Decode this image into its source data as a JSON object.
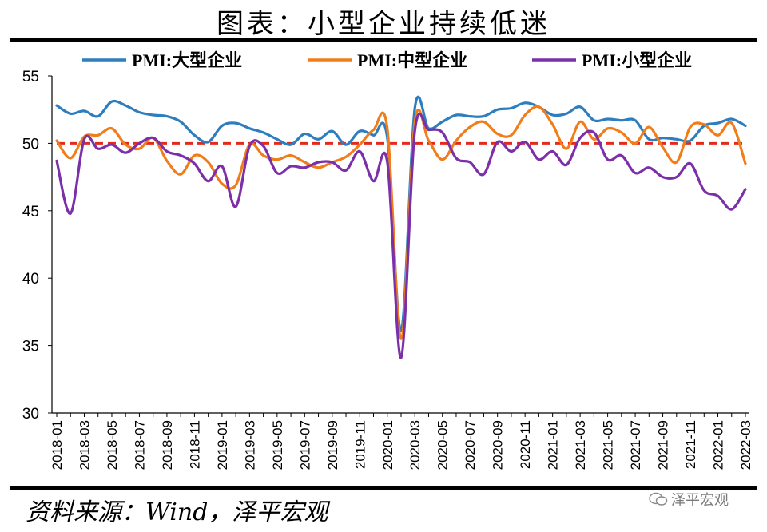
{
  "header": {
    "title": "图表：小型企业持续低迷"
  },
  "footer": {
    "source": "资料来源：Wind，泽平宏观",
    "watermark": "泽平宏观"
  },
  "chart_data": {
    "type": "line",
    "title": "图表：小型企业持续低迷",
    "xlabel": "",
    "ylabel": "",
    "ylim": [
      30,
      55
    ],
    "yticks": [
      30,
      35,
      40,
      45,
      50,
      55
    ],
    "legend_position": "top",
    "grid": false,
    "categories": [
      "2018-01",
      "2018-02",
      "2018-03",
      "2018-04",
      "2018-05",
      "2018-06",
      "2018-07",
      "2018-08",
      "2018-09",
      "2018-10",
      "2018-11",
      "2018-12",
      "2019-01",
      "2019-02",
      "2019-03",
      "2019-04",
      "2019-05",
      "2019-06",
      "2019-07",
      "2019-08",
      "2019-09",
      "2019-10",
      "2019-11",
      "2019-12",
      "2020-01",
      "2020-02",
      "2020-03",
      "2020-04",
      "2020-05",
      "2020-06",
      "2020-07",
      "2020-08",
      "2020-09",
      "2020-10",
      "2020-11",
      "2020-12",
      "2021-01",
      "2021-02",
      "2021-03",
      "2021-04",
      "2021-05",
      "2021-06",
      "2021-07",
      "2021-08",
      "2021-09",
      "2021-10",
      "2021-11",
      "2021-12",
      "2022-01",
      "2022-02",
      "2022-03"
    ],
    "xtick_labels": [
      "2018-01",
      "2018-03",
      "2018-05",
      "2018-07",
      "2018-09",
      "2018-11",
      "2019-01",
      "2019-03",
      "2019-05",
      "2019-07",
      "2019-09",
      "2019-11",
      "2020-01",
      "2020-03",
      "2020-05",
      "2020-07",
      "2020-09",
      "2020-11",
      "2021-01",
      "2021-03",
      "2021-05",
      "2021-07",
      "2021-09",
      "2021-11",
      "2022-01",
      "2022-03"
    ],
    "series": [
      {
        "name": "PMI:大型企业",
        "color": "#2e7dbf",
        "values": [
          52.8,
          52.2,
          52.4,
          52.0,
          53.1,
          52.8,
          52.3,
          52.1,
          52.0,
          51.6,
          50.6,
          50.1,
          51.3,
          51.5,
          51.1,
          50.8,
          50.3,
          49.9,
          50.7,
          50.3,
          50.9,
          49.9,
          50.9,
          50.6,
          50.4,
          36.1,
          52.6,
          51.1,
          51.6,
          52.1,
          52.0,
          52.0,
          52.5,
          52.6,
          53.0,
          52.7,
          52.1,
          52.2,
          52.7,
          51.7,
          51.8,
          51.7,
          51.7,
          50.3,
          50.4,
          50.3,
          50.2,
          51.3,
          51.5,
          51.8,
          51.3
        ]
      },
      {
        "name": "PMI:中型企业",
        "color": "#f07d1a",
        "values": [
          50.2,
          48.9,
          50.5,
          50.6,
          51.1,
          49.9,
          49.6,
          50.4,
          48.7,
          47.7,
          49.1,
          48.6,
          47.0,
          46.9,
          49.9,
          49.1,
          48.8,
          49.1,
          48.6,
          48.2,
          48.6,
          49.0,
          49.9,
          51.0,
          51.1,
          35.5,
          51.6,
          50.2,
          48.8,
          50.2,
          51.2,
          51.6,
          50.7,
          50.6,
          52.1,
          52.7,
          51.4,
          49.6,
          51.6,
          50.3,
          51.1,
          50.8,
          50.0,
          51.2,
          49.7,
          48.6,
          51.2,
          51.4,
          50.6,
          51.5,
          48.5
        ]
      },
      {
        "name": "PMI:小型企业",
        "color": "#7b2fa8",
        "values": [
          48.7,
          44.8,
          50.3,
          49.6,
          49.9,
          49.3,
          50.0,
          50.4,
          49.4,
          49.1,
          48.5,
          47.2,
          48.3,
          45.3,
          49.8,
          49.8,
          47.8,
          48.3,
          48.2,
          48.6,
          48.6,
          48.0,
          49.4,
          47.2,
          48.6,
          34.1,
          50.9,
          51.0,
          50.8,
          48.9,
          48.6,
          47.7,
          50.1,
          49.4,
          50.1,
          48.8,
          49.4,
          48.4,
          50.4,
          50.8,
          48.8,
          49.1,
          47.8,
          48.2,
          47.5,
          47.5,
          48.5,
          46.5,
          46.1,
          45.1,
          46.6
        ]
      }
    ],
    "reference_lines": [
      {
        "y": 50,
        "color": "#e32b1c",
        "style": "dashed"
      }
    ]
  }
}
